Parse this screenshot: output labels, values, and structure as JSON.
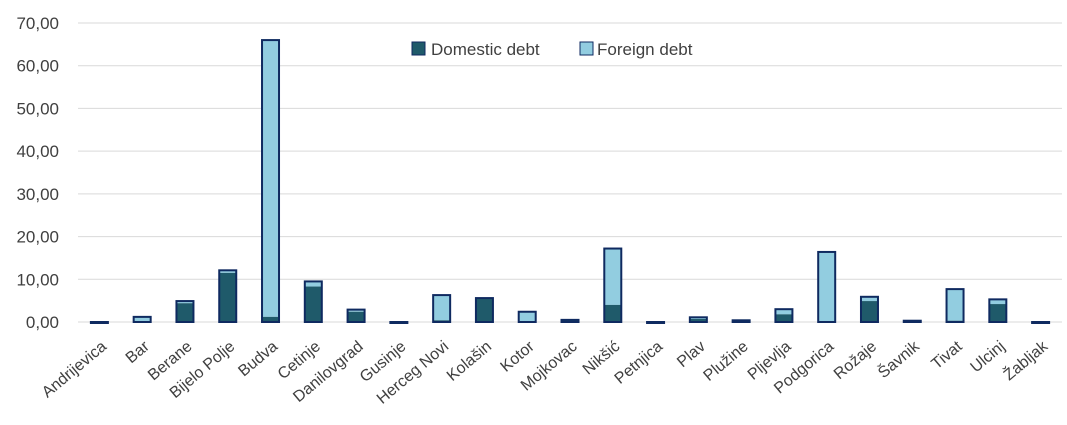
{
  "chart_data": {
    "type": "bar",
    "stacked": true,
    "categories": [
      "Andrijevica",
      "Bar",
      "Berane",
      "Bijelo Polje",
      "Budva",
      "Cetinje",
      "Danilovgrad",
      "Gusinje",
      "Herceg Novi",
      "Kolašin",
      "Kotor",
      "Mojkovac",
      "Nikšić",
      "Petnjica",
      "Plav",
      "Plužine",
      "Pljevlja",
      "Podgorica",
      "Rožaje",
      "Šavnik",
      "Tivat",
      "Ulcinj",
      "Žabljak"
    ],
    "series": [
      {
        "name": "Domestic debt",
        "color": "#1f5a6a",
        "values": [
          0.0,
          0.2,
          4.4,
          11.5,
          1.2,
          8.3,
          2.4,
          0.0,
          0.4,
          5.6,
          0.2,
          0.5,
          4.0,
          0.0,
          0.7,
          0.0,
          1.8,
          0.2,
          4.9,
          0.3,
          0.3,
          4.2,
          0.0
        ]
      },
      {
        "name": "Foreign debt",
        "color": "#92cde0",
        "values": [
          0.0,
          1.0,
          0.5,
          0.6,
          64.8,
          1.2,
          0.5,
          0.0,
          5.9,
          0.0,
          2.2,
          0.0,
          13.2,
          0.0,
          0.4,
          0.4,
          1.2,
          16.2,
          1.0,
          0.0,
          7.4,
          1.1,
          0.0
        ]
      }
    ],
    "yticks": [
      "0,00",
      "10,00",
      "20,00",
      "30,00",
      "40,00",
      "50,00",
      "60,00",
      "70,00"
    ],
    "ylim": [
      0,
      70
    ],
    "grid": true,
    "legend": "top-center"
  }
}
